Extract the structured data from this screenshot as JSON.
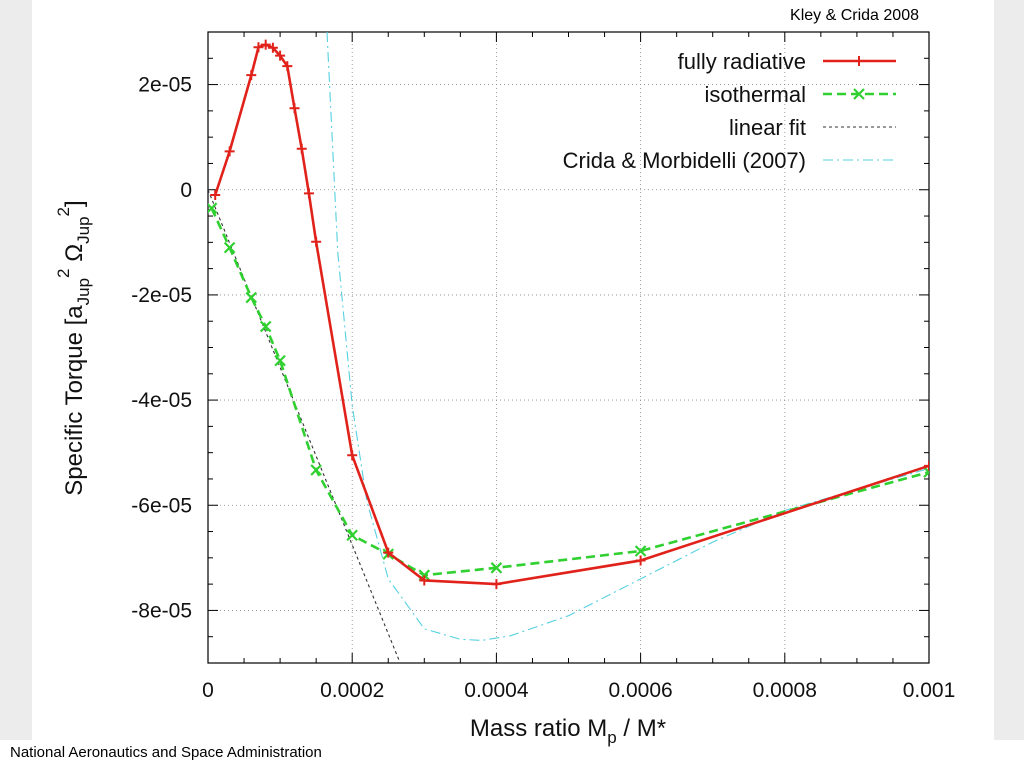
{
  "credit": "Kley & Crida 2008",
  "footer": "National Aeronautics and Space Administration",
  "chart_data": {
    "type": "line",
    "xlabel_parts": {
      "main": "Mass ratio M",
      "sub": "p",
      "tail": " / M*"
    },
    "ylabel_parts": {
      "main": "Specific Torque [a",
      "sub1": "Jup",
      "sup1": "2",
      "mid": " Ω",
      "sub2": "Jup",
      "sup2": "2",
      "tail": "]"
    },
    "xlim": [
      0,
      0.001
    ],
    "ylim": [
      -9e-05,
      3e-05
    ],
    "grid": true,
    "legend_position": "top-right",
    "xticks": [
      {
        "v": 0,
        "label": "0"
      },
      {
        "v": 0.0002,
        "label": "0.0002"
      },
      {
        "v": 0.0004,
        "label": "0.0004"
      },
      {
        "v": 0.0006,
        "label": "0.0006"
      },
      {
        "v": 0.0008,
        "label": "0.0008"
      },
      {
        "v": 0.001,
        "label": "0.001"
      }
    ],
    "yticks": [
      {
        "v": 2e-05,
        "label": "2e-05"
      },
      {
        "v": 0,
        "label": "0"
      },
      {
        "v": -2e-05,
        "label": "-2e-05"
      },
      {
        "v": -4e-05,
        "label": "-4e-05"
      },
      {
        "v": -6e-05,
        "label": "-6e-05"
      },
      {
        "v": -8e-05,
        "label": "-8e-05"
      }
    ],
    "series": [
      {
        "name": "fully radiative",
        "color": "#e0221b",
        "style": "solid",
        "marker": "plus",
        "x": [
          1e-05,
          3e-05,
          6e-05,
          7e-05,
          8e-05,
          9e-05,
          0.0001,
          0.00011,
          0.00012,
          0.00013,
          0.00014,
          0.00015,
          0.0002,
          0.00025,
          0.0003,
          0.0004,
          0.0006,
          0.001
        ],
        "y": [
          -1e-06,
          7.3e-06,
          2.18e-05,
          2.71e-05,
          2.76e-05,
          2.7e-05,
          2.55e-05,
          2.35e-05,
          1.55e-05,
          7.8e-06,
          -7e-07,
          -9.9e-06,
          -5.05e-05,
          -6.9e-05,
          -7.43e-05,
          -7.5e-05,
          -7.05e-05,
          -5.25e-05
        ]
      },
      {
        "name": "isothermal",
        "color": "#2fd02f",
        "style": "dashed",
        "marker": "cross",
        "x": [
          5e-06,
          3e-05,
          6e-05,
          8e-05,
          0.0001,
          0.00015,
          0.0002,
          0.00025,
          0.0003,
          0.0004,
          0.0006,
          0.001
        ],
        "y": [
          -3.5e-06,
          -1.1e-05,
          -2.05e-05,
          -2.6e-05,
          -3.25e-05,
          -5.33e-05,
          -6.57e-05,
          -6.93e-05,
          -7.33e-05,
          -7.19e-05,
          -6.87e-05,
          -5.37e-05
        ]
      },
      {
        "name": "linear fit",
        "color": "#333333",
        "style": "dotted",
        "marker": "none",
        "x": [
          0,
          0.000265
        ],
        "y": [
          0,
          -8.95e-05
        ]
      },
      {
        "name": "Crida & Morbidelli (2007)",
        "color": "#55d0e0",
        "style": "dashdot",
        "marker": "none",
        "x": [
          0.000165,
          0.00018,
          0.0002,
          0.00022,
          0.00025,
          0.0003,
          0.00035,
          0.00038,
          0.00042,
          0.0005,
          0.0006,
          0.0007,
          0.0008,
          0.0009,
          0.001
        ],
        "y": [
          3e-05,
          -1.2e-05,
          -4.1e-05,
          -5.9e-05,
          -7.4e-05,
          -8.35e-05,
          -8.55e-05,
          -8.57e-05,
          -8.48e-05,
          -8.1e-05,
          -7.4e-05,
          -6.7e-05,
          -6.1e-05,
          -5.7e-05,
          -5.3e-05
        ]
      }
    ]
  }
}
